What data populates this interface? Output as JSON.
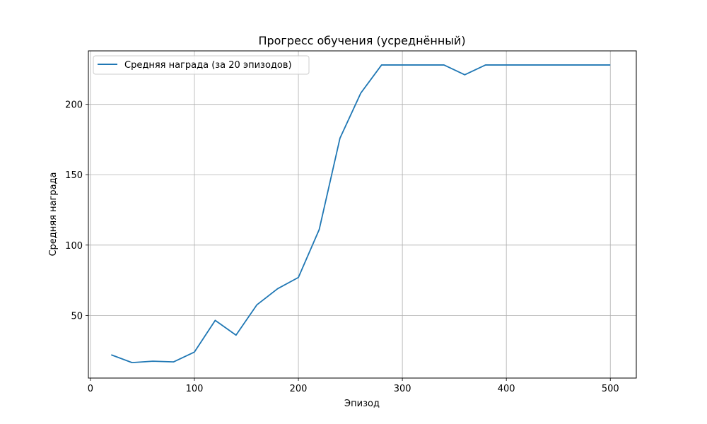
{
  "chart_data": {
    "type": "line",
    "title": "Прогресс обучения (усреднённый)",
    "xlabel": "Эпизод",
    "ylabel": "Средняя награда",
    "xlim": [
      -2,
      525
    ],
    "ylim": [
      5.5,
      238
    ],
    "xticks": [
      0,
      100,
      200,
      300,
      400,
      500
    ],
    "yticks": [
      50,
      100,
      150,
      200
    ],
    "grid": true,
    "legend_position": "top-left",
    "series": [
      {
        "name": "Средняя награда (за 20 эпизодов)",
        "color": "#1f77b4",
        "x": [
          20,
          40,
          60,
          80,
          100,
          120,
          140,
          160,
          180,
          200,
          220,
          240,
          260,
          280,
          300,
          320,
          340,
          360,
          380,
          400,
          420,
          440,
          460,
          480,
          500
        ],
        "y": [
          22,
          16.5,
          17.5,
          17,
          24,
          46.5,
          36,
          57.5,
          69,
          77,
          111,
          176,
          208,
          228,
          228,
          228,
          228,
          221,
          228,
          228,
          228,
          228,
          228,
          228,
          228
        ]
      }
    ]
  }
}
